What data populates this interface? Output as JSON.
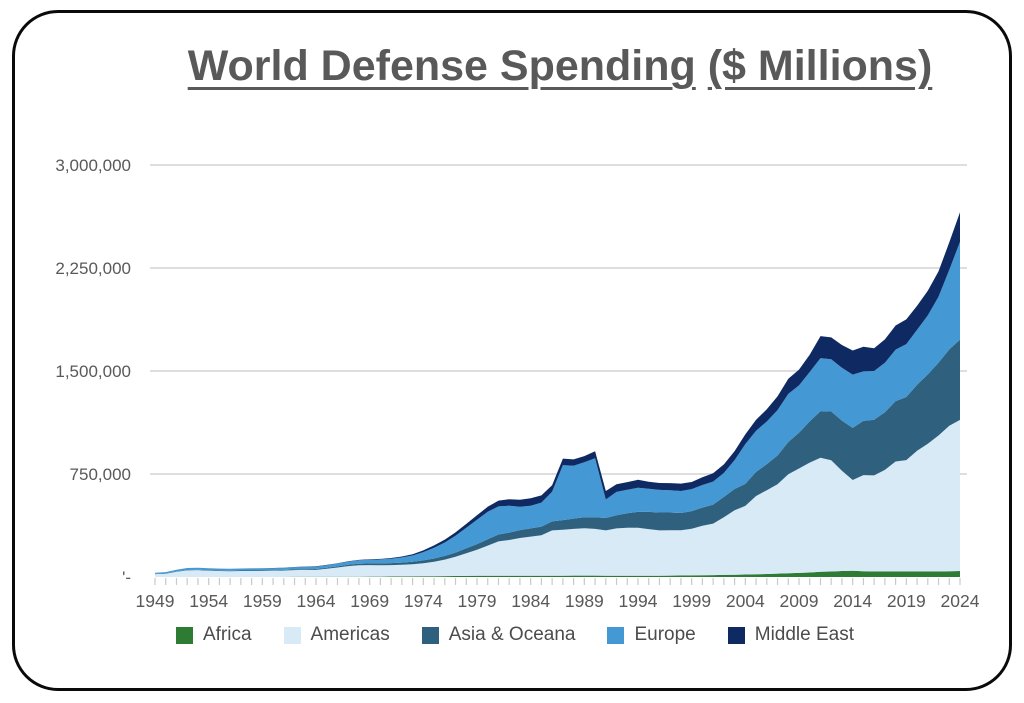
{
  "chart_data": {
    "type": "area",
    "stacked": true,
    "title": "World Defense Spending",
    "subtitle": "($ Millions)",
    "units": "$ Millions",
    "grid": true,
    "legend_position": "bottom",
    "axis_color": "#595959",
    "gridline_color": "#d9d9d9",
    "tick_color": "#c9c9c9",
    "ylim": [
      0,
      3000000
    ],
    "yticks": [
      {
        "value": 0,
        "label": "'-"
      },
      {
        "value": 750000,
        "label": "750,000"
      },
      {
        "value": 1500000,
        "label": "1,500,000"
      },
      {
        "value": 2250000,
        "label": "2,250,000"
      },
      {
        "value": 3000000,
        "label": "3,000,000"
      }
    ],
    "x_tick_label_step": 5,
    "years": [
      1949,
      1950,
      1951,
      1952,
      1953,
      1954,
      1955,
      1956,
      1957,
      1958,
      1959,
      1960,
      1961,
      1962,
      1963,
      1964,
      1965,
      1966,
      1967,
      1968,
      1969,
      1970,
      1971,
      1972,
      1973,
      1974,
      1975,
      1976,
      1977,
      1978,
      1979,
      1980,
      1981,
      1982,
      1983,
      1984,
      1985,
      1986,
      1987,
      1988,
      1989,
      1990,
      1991,
      1992,
      1993,
      1994,
      1995,
      1996,
      1997,
      1998,
      1999,
      2000,
      2001,
      2002,
      2003,
      2004,
      2005,
      2006,
      2007,
      2008,
      2009,
      2010,
      2011,
      2012,
      2013,
      2014,
      2015,
      2016,
      2017,
      2018,
      2019,
      2020,
      2021,
      2022,
      2023,
      2024
    ],
    "series": [
      {
        "name": "Africa",
        "color": "#2e7b33",
        "values": [
          200,
          200,
          250,
          300,
          300,
          350,
          400,
          450,
          500,
          600,
          700,
          800,
          1000,
          1100,
          1300,
          1500,
          1700,
          1900,
          2100,
          2400,
          2700,
          3000,
          3500,
          4000,
          4500,
          5000,
          6000,
          6500,
          7000,
          8000,
          8500,
          9000,
          9200,
          9400,
          9200,
          9000,
          9000,
          9200,
          9500,
          10000,
          10000,
          10000,
          9500,
          9000,
          9000,
          9000,
          9000,
          9500,
          10000,
          11000,
          12000,
          13000,
          14000,
          15000,
          16000,
          18000,
          20000,
          22000,
          25000,
          28000,
          30000,
          33000,
          38000,
          40000,
          44000,
          46000,
          42000,
          40000,
          40000,
          41000,
          41000,
          40000,
          40000,
          40000,
          42000,
          44000
        ]
      },
      {
        "name": "Americas",
        "color": "#d7eaf6",
        "values": [
          21000,
          24000,
          38000,
          48000,
          50000,
          45000,
          43000,
          42000,
          43000,
          43000,
          43000,
          44000,
          46000,
          49000,
          51000,
          50000,
          58000,
          67000,
          77000,
          83000,
          84000,
          83000,
          83000,
          85000,
          88000,
          95000,
          105000,
          120000,
          140000,
          165000,
          190000,
          220000,
          250000,
          260000,
          275000,
          285000,
          295000,
          330000,
          335000,
          340000,
          345000,
          340000,
          330000,
          345000,
          350000,
          350000,
          340000,
          330000,
          330000,
          330000,
          340000,
          360000,
          375000,
          420000,
          470000,
          500000,
          570000,
          610000,
          650000,
          720000,
          760000,
          800000,
          830000,
          810000,
          730000,
          660000,
          700000,
          700000,
          740000,
          800000,
          810000,
          880000,
          930000,
          990000,
          1060000,
          1100000
        ]
      },
      {
        "name": "Asia & Oceana",
        "color": "#2f617f",
        "values": [
          1500,
          2000,
          2500,
          3000,
          3000,
          3200,
          3400,
          3600,
          3800,
          4000,
          4200,
          4500,
          5000,
          5500,
          6000,
          6500,
          7500,
          8500,
          10000,
          11000,
          12000,
          13000,
          14500,
          16000,
          18000,
          21000,
          24000,
          27000,
          31000,
          36000,
          41000,
          46000,
          50000,
          54000,
          57000,
          60000,
          63000,
          66000,
          70000,
          75000,
          80000,
          85000,
          90000,
          96000,
          105000,
          116000,
          125000,
          130000,
          130000,
          125000,
          128000,
          132000,
          138000,
          148000,
          155000,
          160000,
          175000,
          190000,
          210000,
          235000,
          260000,
          300000,
          340000,
          355000,
          365000,
          380000,
          395000,
          405000,
          420000,
          440000,
          460000,
          480000,
          505000,
          530000,
          555000,
          585000
        ]
      },
      {
        "name": "Europe",
        "color": "#4498d3",
        "values": [
          8000,
          9500,
          12000,
          14000,
          14000,
          14500,
          14000,
          14000,
          14000,
          14000,
          14500,
          15000,
          15500,
          16000,
          17000,
          18000,
          19000,
          21000,
          23000,
          25000,
          27000,
          29000,
          32000,
          38000,
          46000,
          60000,
          78000,
          98000,
          122000,
          150000,
          178000,
          200000,
          205000,
          195000,
          170000,
          165000,
          175000,
          215000,
          400000,
          385000,
          400000,
          430000,
          135000,
          170000,
          172000,
          175000,
          168000,
          165000,
          162000,
          160000,
          160000,
          165000,
          168000,
          175000,
          210000,
          290000,
          300000,
          310000,
          330000,
          350000,
          345000,
          360000,
          386000,
          380000,
          385000,
          388000,
          360000,
          355000,
          360000,
          375000,
          385000,
          400000,
          430000,
          480000,
          580000,
          712000
        ]
      },
      {
        "name": "Middle East",
        "color": "#0f2a63",
        "values": [
          300,
          300,
          400,
          400,
          500,
          500,
          500,
          600,
          700,
          800,
          800,
          900,
          1000,
          1200,
          1500,
          1800,
          2000,
          2200,
          2500,
          2800,
          3200,
          4000,
          5000,
          6500,
          9000,
          13000,
          17000,
          21000,
          25000,
          28000,
          32000,
          36000,
          42000,
          48000,
          52000,
          54000,
          52000,
          48000,
          48000,
          46000,
          45000,
          50000,
          62000,
          56000,
          55000,
          58000,
          52000,
          50000,
          52000,
          54000,
          52000,
          56000,
          60000,
          62000,
          66000,
          70000,
          80000,
          90000,
          100000,
          110000,
          115000,
          125000,
          160000,
          160000,
          165000,
          175000,
          180000,
          165000,
          170000,
          175000,
          180000,
          175000,
          180000,
          185000,
          200000,
          215000
        ]
      }
    ]
  }
}
